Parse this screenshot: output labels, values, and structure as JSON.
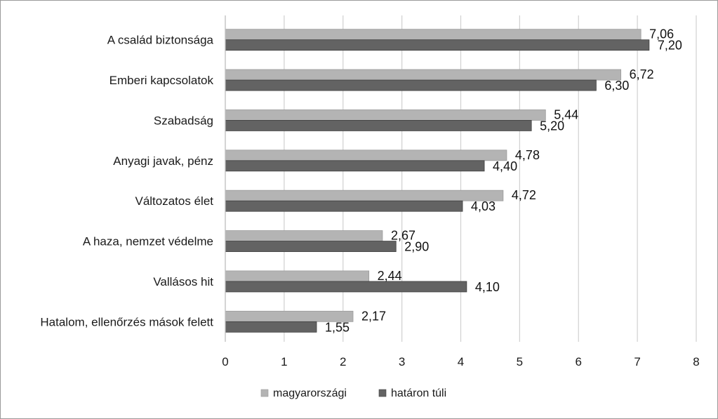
{
  "chart_data": {
    "type": "bar",
    "orientation": "horizontal",
    "categories": [
      "A család biztonsága",
      "Emberi kapcsolatok",
      "Szabadság",
      "Anyagi javak, pénz",
      "Változatos élet",
      "A haza, nemzet védelme",
      "Vallásos hit",
      "Hatalom, ellenőrzés mások felett"
    ],
    "series": [
      {
        "name": "magyarországi",
        "color": "#b4b4b4",
        "values": [
          7.06,
          6.72,
          5.44,
          4.78,
          4.72,
          2.67,
          2.44,
          2.17
        ],
        "labels": [
          "7,06",
          "6,72",
          "5,44",
          "4,78",
          "4,72",
          "2,67",
          "2,44",
          "2,17"
        ]
      },
      {
        "name": "határon túli",
        "color": "#636363",
        "values": [
          7.2,
          6.3,
          5.2,
          4.4,
          4.03,
          2.9,
          4.1,
          1.55
        ],
        "labels": [
          "7,20",
          "6,30",
          "5,20",
          "4,40",
          "4,03",
          "2,90",
          "4,10",
          "1,55"
        ]
      }
    ],
    "xlim": [
      0,
      8
    ],
    "xticks": [
      "0",
      "1",
      "2",
      "3",
      "4",
      "5",
      "6",
      "7",
      "8"
    ],
    "grid": "vertical",
    "legend_position": "bottom"
  }
}
